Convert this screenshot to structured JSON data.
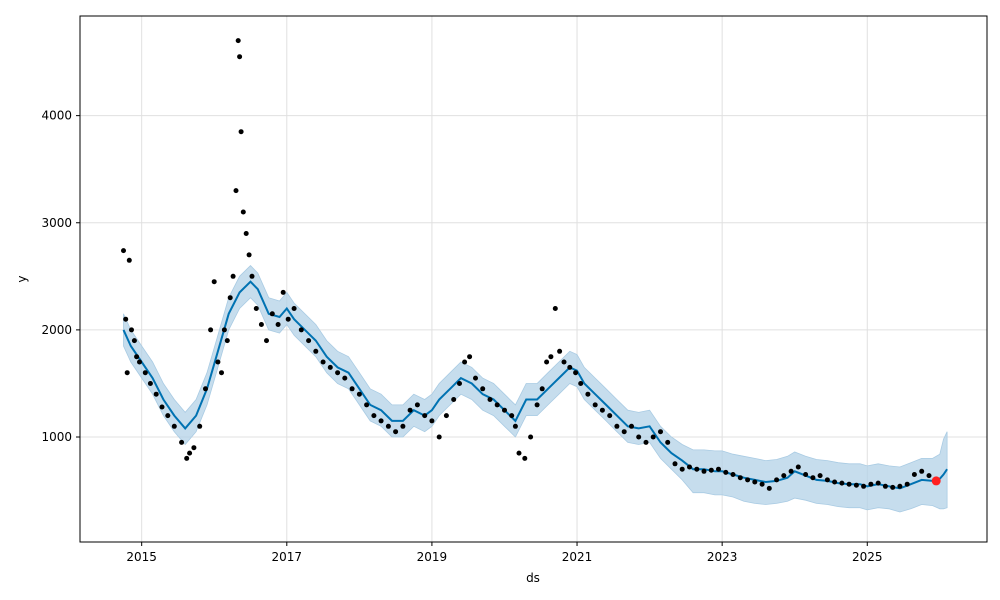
{
  "chart_data": {
    "type": "line",
    "title": "",
    "xlabel": "ds",
    "ylabel": "y",
    "x_type": "year",
    "xlim": [
      2014.15,
      2026.65
    ],
    "ylim": [
      20,
      4930
    ],
    "x_ticks": [
      2015,
      2017,
      2019,
      2021,
      2023,
      2025
    ],
    "x_tick_labels": [
      "2015",
      "2017",
      "2019",
      "2021",
      "2023",
      "2025"
    ],
    "y_ticks": [
      1000,
      2000,
      3000,
      4000
    ],
    "y_tick_labels": [
      "1000",
      "2000",
      "3000",
      "4000"
    ],
    "grid": true,
    "legend": "none",
    "colors": {
      "observed": "#000000",
      "forecast": "#0072b2",
      "uncertainty": "#b3d1e7",
      "highlight": "#ff2020"
    },
    "series": [
      {
        "name": "",
        "kind": "forecast_yhat",
        "x": [
          2014.75,
          2014.85,
          2015.0,
          2015.15,
          2015.3,
          2015.45,
          2015.6,
          2015.75,
          2015.9,
          2016.05,
          2016.2,
          2016.35,
          2016.5,
          2016.6,
          2016.75,
          2016.9,
          2017.0,
          2017.1,
          2017.25,
          2017.4,
          2017.55,
          2017.7,
          2017.85,
          2018.0,
          2018.15,
          2018.3,
          2018.45,
          2018.6,
          2018.75,
          2018.9,
          2019.0,
          2019.1,
          2019.25,
          2019.4,
          2019.55,
          2019.7,
          2019.85,
          2020.0,
          2020.15,
          2020.3,
          2020.45,
          2020.6,
          2020.75,
          2020.9,
          2021.0,
          2021.1,
          2021.25,
          2021.4,
          2021.55,
          2021.7,
          2021.85,
          2022.0,
          2022.15,
          2022.3,
          2022.45,
          2022.6,
          2022.75,
          2022.9,
          2023.0,
          2023.15,
          2023.3,
          2023.45,
          2023.6,
          2023.75,
          2023.9,
          2024.0,
          2024.15,
          2024.3,
          2024.45,
          2024.6,
          2024.75,
          2024.9,
          2025.0,
          2025.15,
          2025.3,
          2025.45,
          2025.6,
          2025.75,
          2025.9,
          2026.0,
          2026.05,
          2026.1
        ],
        "y": [
          2000,
          1850,
          1700,
          1550,
          1350,
          1200,
          1080,
          1200,
          1450,
          1800,
          2150,
          2350,
          2450,
          2380,
          2150,
          2120,
          2200,
          2100,
          2000,
          1900,
          1750,
          1650,
          1600,
          1450,
          1300,
          1250,
          1150,
          1150,
          1250,
          1200,
          1250,
          1350,
          1450,
          1550,
          1500,
          1400,
          1350,
          1250,
          1150,
          1350,
          1350,
          1450,
          1550,
          1650,
          1620,
          1500,
          1400,
          1300,
          1200,
          1100,
          1080,
          1100,
          950,
          850,
          780,
          700,
          700,
          680,
          680,
          650,
          620,
          600,
          580,
          590,
          620,
          680,
          640,
          600,
          590,
          570,
          560,
          560,
          540,
          560,
          540,
          520,
          560,
          600,
          590,
          610,
          650,
          700
        ]
      },
      {
        "name": "",
        "kind": "forecast_upper",
        "x": [
          2014.75,
          2014.85,
          2015.0,
          2015.15,
          2015.3,
          2015.45,
          2015.6,
          2015.75,
          2015.9,
          2016.05,
          2016.2,
          2016.35,
          2016.5,
          2016.6,
          2016.75,
          2016.9,
          2017.0,
          2017.1,
          2017.25,
          2017.4,
          2017.55,
          2017.7,
          2017.85,
          2018.0,
          2018.15,
          2018.3,
          2018.45,
          2018.6,
          2018.75,
          2018.9,
          2019.0,
          2019.1,
          2019.25,
          2019.4,
          2019.55,
          2019.7,
          2019.85,
          2020.0,
          2020.15,
          2020.3,
          2020.45,
          2020.6,
          2020.75,
          2020.9,
          2021.0,
          2021.1,
          2021.25,
          2021.4,
          2021.55,
          2021.7,
          2021.85,
          2022.0,
          2022.15,
          2022.3,
          2022.45,
          2022.6,
          2022.75,
          2022.9,
          2023.0,
          2023.15,
          2023.3,
          2023.45,
          2023.6,
          2023.75,
          2023.9,
          2024.0,
          2024.15,
          2024.3,
          2024.45,
          2024.6,
          2024.75,
          2024.9,
          2025.0,
          2025.15,
          2025.3,
          2025.45,
          2025.6,
          2025.75,
          2025.9,
          2026.0,
          2026.05,
          2026.1
        ],
        "y": [
          2150,
          2000,
          1850,
          1700,
          1500,
          1350,
          1230,
          1350,
          1600,
          1950,
          2300,
          2500,
          2600,
          2530,
          2300,
          2270,
          2350,
          2250,
          2150,
          2050,
          1900,
          1800,
          1750,
          1600,
          1450,
          1400,
          1300,
          1300,
          1400,
          1350,
          1400,
          1500,
          1600,
          1700,
          1650,
          1550,
          1500,
          1400,
          1300,
          1500,
          1500,
          1600,
          1700,
          1800,
          1770,
          1650,
          1550,
          1450,
          1350,
          1250,
          1230,
          1250,
          1100,
          1000,
          930,
          880,
          880,
          870,
          870,
          840,
          820,
          800,
          780,
          790,
          820,
          860,
          820,
          790,
          780,
          760,
          750,
          750,
          730,
          750,
          730,
          720,
          760,
          800,
          800,
          840,
          980,
          1050
        ]
      },
      {
        "name": "",
        "kind": "forecast_lower",
        "x": [
          2014.75,
          2014.85,
          2015.0,
          2015.15,
          2015.3,
          2015.45,
          2015.6,
          2015.75,
          2015.9,
          2016.05,
          2016.2,
          2016.35,
          2016.5,
          2016.6,
          2016.75,
          2016.9,
          2017.0,
          2017.1,
          2017.25,
          2017.4,
          2017.55,
          2017.7,
          2017.85,
          2018.0,
          2018.15,
          2018.3,
          2018.45,
          2018.6,
          2018.75,
          2018.9,
          2019.0,
          2019.1,
          2019.25,
          2019.4,
          2019.55,
          2019.7,
          2019.85,
          2020.0,
          2020.15,
          2020.3,
          2020.45,
          2020.6,
          2020.75,
          2020.9,
          2021.0,
          2021.1,
          2021.25,
          2021.4,
          2021.55,
          2021.7,
          2021.85,
          2022.0,
          2022.15,
          2022.3,
          2022.45,
          2022.6,
          2022.75,
          2022.9,
          2023.0,
          2023.15,
          2023.3,
          2023.45,
          2023.6,
          2023.75,
          2023.9,
          2024.0,
          2024.15,
          2024.3,
          2024.45,
          2024.6,
          2024.75,
          2024.9,
          2025.0,
          2025.15,
          2025.3,
          2025.45,
          2025.6,
          2025.75,
          2025.9,
          2026.0,
          2026.05,
          2026.1
        ],
        "y": [
          1850,
          1700,
          1550,
          1400,
          1200,
          1050,
          930,
          1050,
          1300,
          1650,
          2000,
          2200,
          2300,
          2230,
          2000,
          1970,
          2050,
          1950,
          1850,
          1750,
          1600,
          1500,
          1450,
          1300,
          1150,
          1100,
          1000,
          1000,
          1100,
          1050,
          1100,
          1200,
          1300,
          1400,
          1350,
          1250,
          1200,
          1100,
          1000,
          1200,
          1200,
          1300,
          1400,
          1500,
          1470,
          1350,
          1250,
          1150,
          1050,
          950,
          930,
          950,
          800,
          700,
          600,
          480,
          480,
          460,
          460,
          440,
          400,
          380,
          370,
          380,
          400,
          430,
          410,
          380,
          370,
          350,
          340,
          340,
          320,
          340,
          330,
          300,
          330,
          370,
          360,
          330,
          330,
          340
        ]
      },
      {
        "name": "",
        "kind": "observed_points",
        "x": [
          2014.75,
          2014.78,
          2014.8,
          2014.83,
          2014.86,
          2014.9,
          2014.93,
          2014.97,
          2015.05,
          2015.12,
          2015.2,
          2015.28,
          2015.36,
          2015.45,
          2015.55,
          2015.62,
          2015.66,
          2015.72,
          2015.8,
          2015.88,
          2015.95,
          2016.0,
          2016.05,
          2016.1,
          2016.14,
          2016.18,
          2016.22,
          2016.26,
          2016.3,
          2016.33,
          2016.35,
          2016.37,
          2016.4,
          2016.44,
          2016.48,
          2016.52,
          2016.58,
          2016.65,
          2016.72,
          2016.8,
          2016.88,
          2016.95,
          2017.02,
          2017.1,
          2017.2,
          2017.3,
          2017.4,
          2017.5,
          2017.6,
          2017.7,
          2017.8,
          2017.9,
          2018.0,
          2018.1,
          2018.2,
          2018.3,
          2018.4,
          2018.5,
          2018.6,
          2018.7,
          2018.8,
          2018.9,
          2019.0,
          2019.1,
          2019.2,
          2019.3,
          2019.38,
          2019.45,
          2019.52,
          2019.6,
          2019.7,
          2019.8,
          2019.9,
          2020.0,
          2020.1,
          2020.15,
          2020.2,
          2020.28,
          2020.36,
          2020.45,
          2020.52,
          2020.58,
          2020.64,
          2020.7,
          2020.76,
          2020.82,
          2020.9,
          2020.98,
          2021.05,
          2021.15,
          2021.25,
          2021.35,
          2021.45,
          2021.55,
          2021.65,
          2021.75,
          2021.85,
          2021.95,
          2022.05,
          2022.15,
          2022.25,
          2022.35,
          2022.45,
          2022.55,
          2022.65,
          2022.75,
          2022.85,
          2022.95,
          2023.05,
          2023.15,
          2023.25,
          2023.35,
          2023.45,
          2023.55,
          2023.65,
          2023.75,
          2023.85,
          2023.95,
          2024.05,
          2024.15,
          2024.25,
          2024.35,
          2024.45,
          2024.55,
          2024.65,
          2024.75,
          2024.85,
          2024.95,
          2025.05,
          2025.15,
          2025.25,
          2025.35,
          2025.45,
          2025.55,
          2025.65,
          2025.75,
          2025.85
        ],
        "y": [
          2740,
          2100,
          1600,
          2650,
          2000,
          1900,
          1750,
          1700,
          1600,
          1500,
          1400,
          1280,
          1200,
          1100,
          950,
          800,
          850,
          900,
          1100,
          1450,
          2000,
          2450,
          1700,
          1600,
          2000,
          1900,
          2300,
          2500,
          3300,
          4700,
          4550,
          3850,
          3100,
          2900,
          2700,
          2500,
          2200,
          2050,
          1900,
          2150,
          2050,
          2350,
          2100,
          2200,
          2000,
          1900,
          1800,
          1700,
          1650,
          1600,
          1550,
          1450,
          1400,
          1300,
          1200,
          1150,
          1100,
          1050,
          1100,
          1250,
          1300,
          1200,
          1150,
          1000,
          1200,
          1350,
          1500,
          1700,
          1750,
          1550,
          1450,
          1350,
          1300,
          1250,
          1200,
          1100,
          850,
          800,
          1000,
          1300,
          1450,
          1700,
          1750,
          2200,
          1800,
          1700,
          1650,
          1600,
          1500,
          1400,
          1300,
          1250,
          1200,
          1100,
          1050,
          1100,
          1000,
          950,
          1000,
          1050,
          950,
          750,
          700,
          720,
          700,
          680,
          690,
          700,
          670,
          650,
          620,
          600,
          580,
          560,
          520,
          600,
          640,
          680,
          720,
          650,
          620,
          640,
          600,
          580,
          570,
          560,
          550,
          540,
          560,
          570,
          540,
          530,
          540,
          560,
          650,
          680,
          640
        ]
      },
      {
        "name": "",
        "kind": "highlight_point",
        "x": [
          2025.95
        ],
        "y": [
          590
        ]
      }
    ]
  }
}
